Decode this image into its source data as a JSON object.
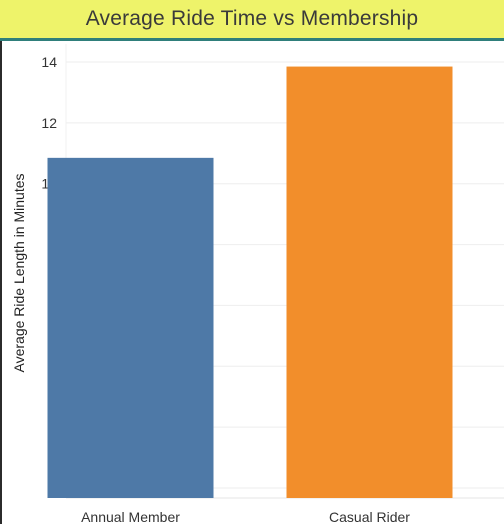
{
  "title": "Average Ride Time vs Membership",
  "colors": {
    "title_bar": "#eef36a",
    "title_border": "#2f7f7b",
    "annual_member": "#4e79a7",
    "casual_rider": "#f28e2b",
    "gridline": "#eeeeee"
  },
  "chart_data": {
    "type": "bar",
    "title": "Average Ride Time vs Membership",
    "xlabel": "",
    "ylabel": "Average Ride Length in Minutes",
    "categories": [
      "Annual Member",
      "Casual Rider"
    ],
    "values": [
      10.85,
      13.85
    ],
    "bar_colors": [
      "#4e79a7",
      "#f28e2b"
    ],
    "ylim": [
      0,
      14.5
    ],
    "yticks": [
      "0",
      "2",
      "4",
      "6",
      "8",
      "10",
      "12",
      "14"
    ],
    "grid": true
  }
}
